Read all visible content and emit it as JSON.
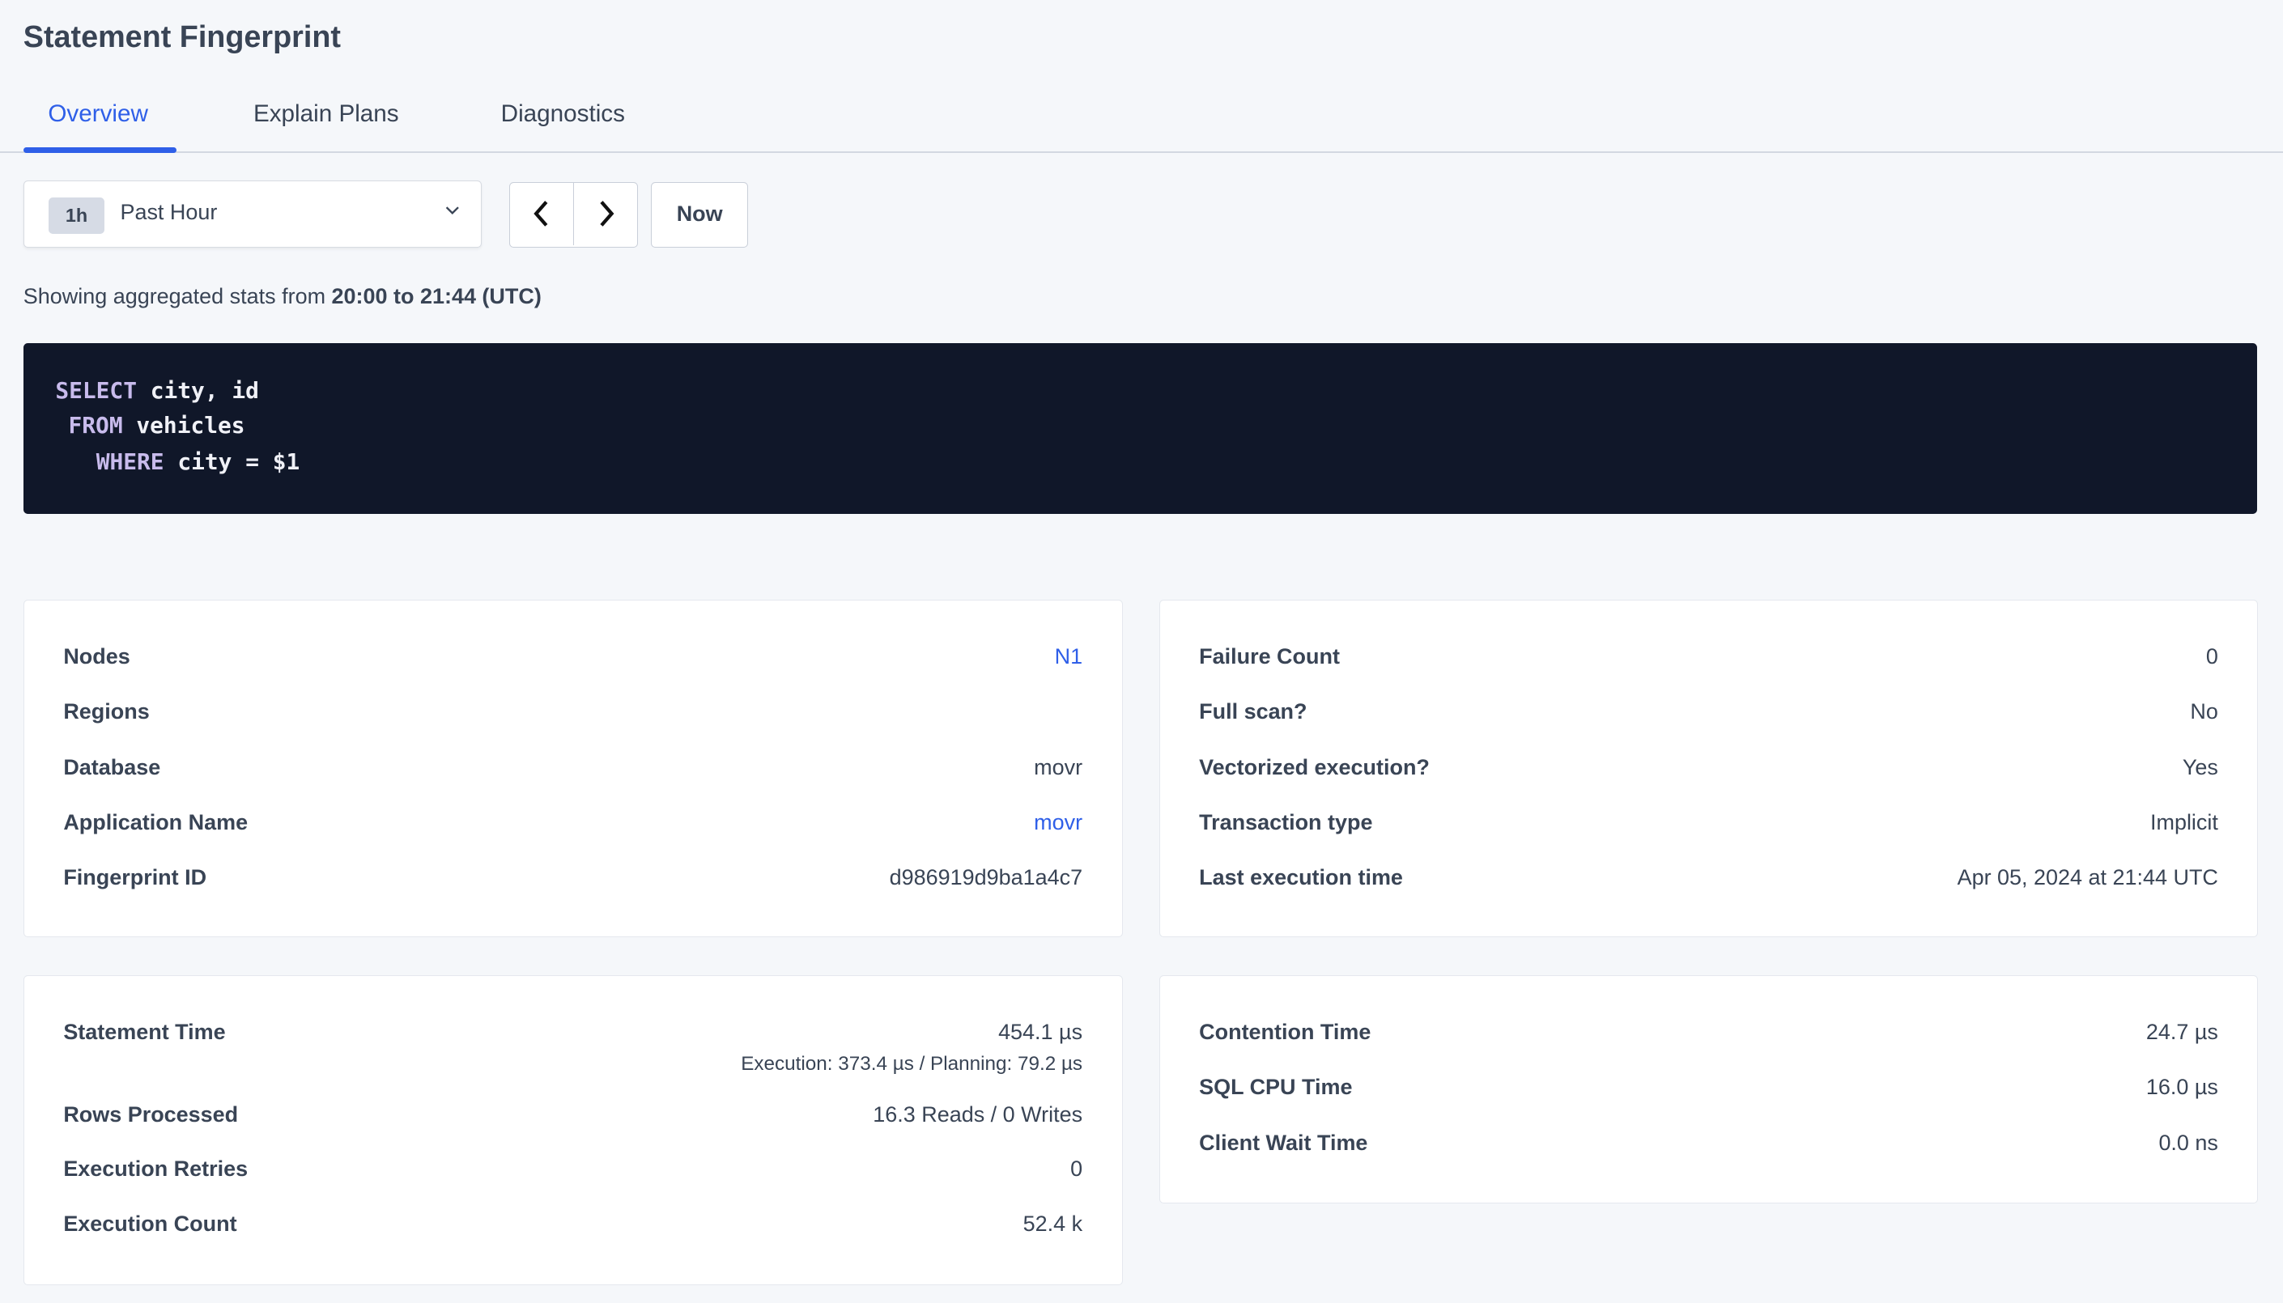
{
  "page": {
    "title": "Statement Fingerprint"
  },
  "tabs": [
    {
      "label": "Overview",
      "active": true
    },
    {
      "label": "Explain Plans",
      "active": false
    },
    {
      "label": "Diagnostics",
      "active": false
    }
  ],
  "time_range": {
    "badge": "1h",
    "label": "Past Hour",
    "now_label": "Now"
  },
  "aggregated": {
    "prefix": "Showing aggregated stats from ",
    "range": "20:00 to 21:44 (UTC)"
  },
  "sql": {
    "lines": [
      {
        "keyword": "SELECT",
        "rest": " city, id"
      },
      {
        "keyword": "FROM",
        "rest": " vehicles"
      },
      {
        "keyword": "WHERE",
        "rest": " city = $1"
      }
    ]
  },
  "details_left": [
    {
      "label": "Nodes",
      "value": "N1",
      "link": true
    },
    {
      "label": "Regions",
      "value": ""
    },
    {
      "label": "Database",
      "value": "movr"
    },
    {
      "label": "Application Name",
      "value": "movr",
      "link": true
    },
    {
      "label": "Fingerprint ID",
      "value": "d986919d9ba1a4c7"
    }
  ],
  "details_right": [
    {
      "label": "Failure Count",
      "value": "0"
    },
    {
      "label": "Full scan?",
      "value": "No"
    },
    {
      "label": "Vectorized execution?",
      "value": "Yes"
    },
    {
      "label": "Transaction type",
      "value": "Implicit"
    },
    {
      "label": "Last execution time",
      "value": "Apr 05, 2024 at 21:44 UTC"
    }
  ],
  "stats_left": {
    "statement_time": {
      "label": "Statement Time",
      "value": "454.1 µs",
      "sub": "Execution: 373.4 µs / Planning: 79.2 µs"
    },
    "rows_processed": {
      "label": "Rows Processed",
      "value": "16.3 Reads / 0 Writes"
    },
    "execution_retries": {
      "label": "Execution Retries",
      "value": "0"
    },
    "execution_count": {
      "label": "Execution Count",
      "value": "52.4 k"
    }
  },
  "stats_right": [
    {
      "label": "Contention Time",
      "value": "24.7 µs"
    },
    {
      "label": "SQL CPU Time",
      "value": "16.0 µs"
    },
    {
      "label": "Client Wait Time",
      "value": "0.0 ns"
    }
  ],
  "colors": {
    "accent": "#2f5fe8",
    "code_bg": "#101729",
    "keyword": "#c8bbec",
    "page_bg": "#f5f7fa"
  }
}
